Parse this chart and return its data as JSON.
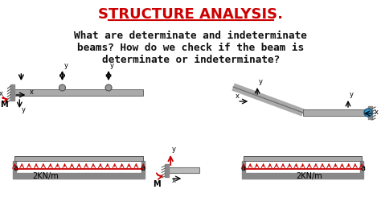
{
  "title": "STRUCTURE ANALYSIS.",
  "title_color": "#cc0000",
  "question_line1": "What are determinate and indeterminate",
  "question_line2": "beams? How do we check if the beam is",
  "question_line3": "determinate or indeterminate?",
  "question_color": "#111111",
  "bg_color": "#ffffff",
  "beam_color": "#aaaaaa",
  "beam_dark": "#555555",
  "arrow_color": "#cc0000",
  "label_color": "#000000",
  "figsize": [
    4.74,
    2.66
  ],
  "dpi": 100
}
